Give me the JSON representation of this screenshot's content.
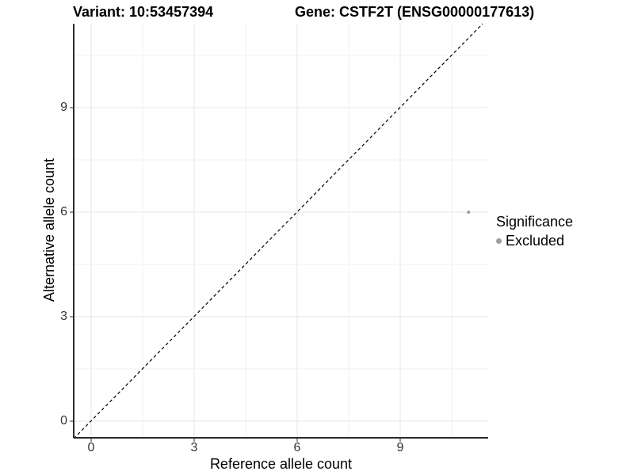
{
  "titles": {
    "variant": "Variant: 10:53457394",
    "gene": "Gene: CSTF2T (ENSG00000177613)"
  },
  "axes": {
    "x": {
      "label": "Reference allele count",
      "ticks": [
        "0",
        "3",
        "6",
        "9"
      ]
    },
    "y": {
      "label": "Alternative allele count",
      "ticks": [
        "0",
        "3",
        "6",
        "9"
      ]
    }
  },
  "legend": {
    "title": "Significance",
    "items": [
      {
        "label": "Excluded",
        "color": "#9e9e9e"
      }
    ]
  },
  "colors": {
    "background": "#ffffff",
    "axis_line": "#2b2b2b",
    "grid_major": "#e5e5e5",
    "grid_minor": "#f1f1f1",
    "point": "#9e9e9e",
    "identity_line": "#000000"
  },
  "chart_data": {
    "type": "scatter",
    "title": "Variant: 10:53457394 | Gene: CSTF2T (ENSG00000177613)",
    "xlabel": "Reference allele count",
    "ylabel": "Alternative allele count",
    "xlim": [
      -0.5,
      11.6
    ],
    "ylim": [
      -0.5,
      11.4
    ],
    "x_ticks": [
      0,
      3,
      6,
      9
    ],
    "y_ticks": [
      0,
      3,
      6,
      9
    ],
    "grid": true,
    "legend_position": "right",
    "series": [
      {
        "name": "Excluded",
        "color": "#9e9e9e",
        "points": [
          {
            "x": 11,
            "y": 6
          }
        ]
      }
    ],
    "reference_line": {
      "kind": "identity y=x",
      "style": "dashed",
      "color": "#000000"
    }
  }
}
